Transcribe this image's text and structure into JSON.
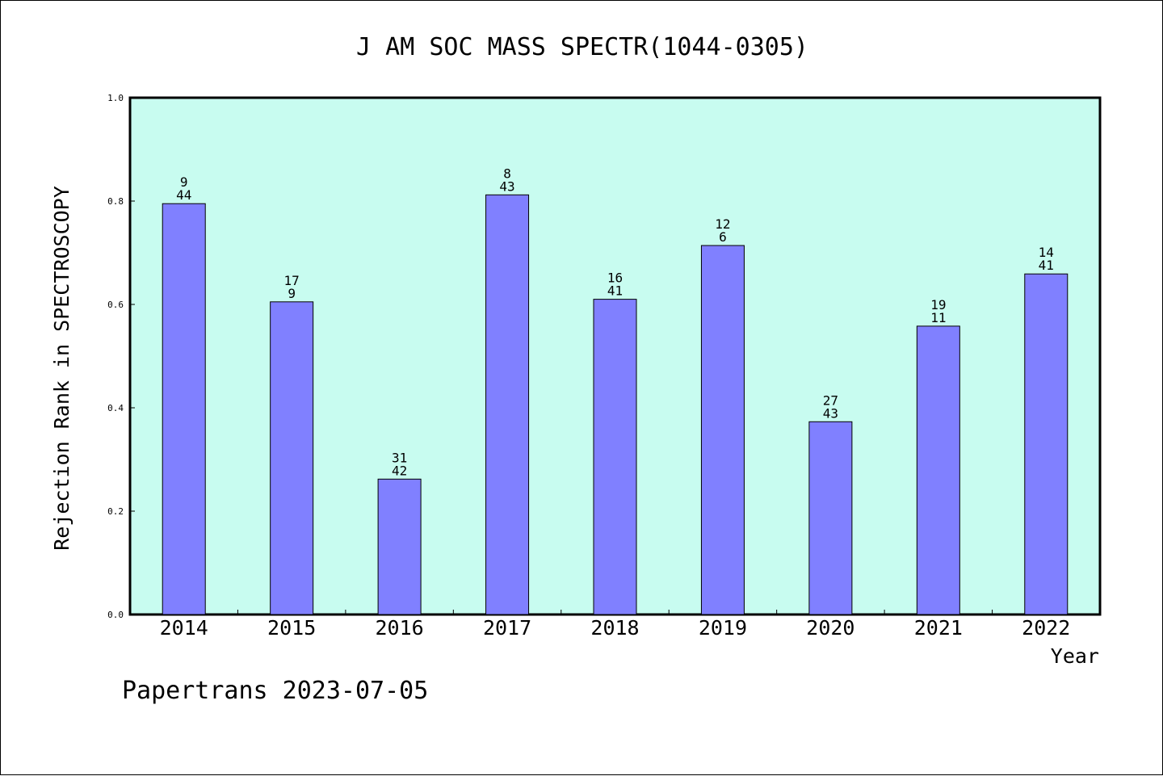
{
  "chart_data": {
    "type": "bar",
    "title": "J AM SOC MASS SPECTR(1044-0305)",
    "xlabel": "Year",
    "ylabel": "Rejection Rank in SPECTROSCOPY",
    "categories": [
      "2014",
      "2015",
      "2016",
      "2017",
      "2018",
      "2019",
      "2020",
      "2021",
      "2022"
    ],
    "values": [
      0.795,
      0.605,
      0.262,
      0.812,
      0.61,
      0.714,
      0.373,
      0.558,
      0.659
    ],
    "label_top": [
      "9",
      "17",
      "31",
      "8",
      "16",
      "12",
      "27",
      "19",
      "14"
    ],
    "label_bottom": [
      "44",
      "9",
      "42",
      "43",
      "41",
      "6",
      "43",
      "11",
      "41"
    ],
    "ylim": [
      0.0,
      1.0
    ],
    "yticks": [
      "0.0",
      "0.2",
      "0.4",
      "0.6",
      "0.8",
      "1.0"
    ],
    "grid": false,
    "legend": "none",
    "colors": {
      "bar": "#8080ff",
      "plot_background": "#c8fcf0",
      "axis": "#000000"
    }
  },
  "footer": {
    "text": "Papertrans 2023-07-05"
  }
}
